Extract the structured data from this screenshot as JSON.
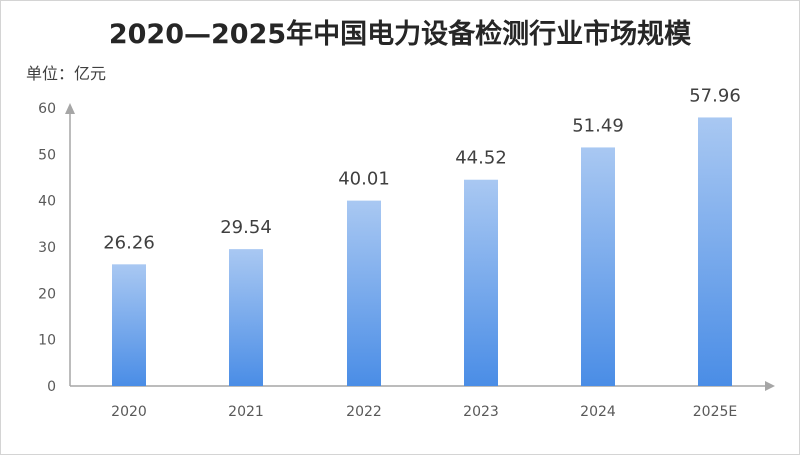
{
  "chart_data": {
    "type": "bar",
    "title": "2020—2025年中国电力设备检测行业市场规模",
    "unit_label": "单位：亿元",
    "categories": [
      "2020",
      "2021",
      "2022",
      "2023",
      "2024",
      "2025E"
    ],
    "values": [
      26.26,
      29.54,
      40.01,
      44.52,
      51.49,
      57.96
    ],
    "data_labels": [
      "26.26",
      "29.54",
      "40.01",
      "44.52",
      "51.49",
      "57.96"
    ],
    "y_ticks": [
      "0",
      "10",
      "20",
      "30",
      "40",
      "50",
      "60"
    ],
    "ylim": [
      0,
      60
    ],
    "grid": false,
    "legend": "none",
    "colors": {
      "bar_top": "#a9c8f2",
      "bar_bottom": "#4a8de6",
      "axis": "#a6a6a6"
    }
  }
}
